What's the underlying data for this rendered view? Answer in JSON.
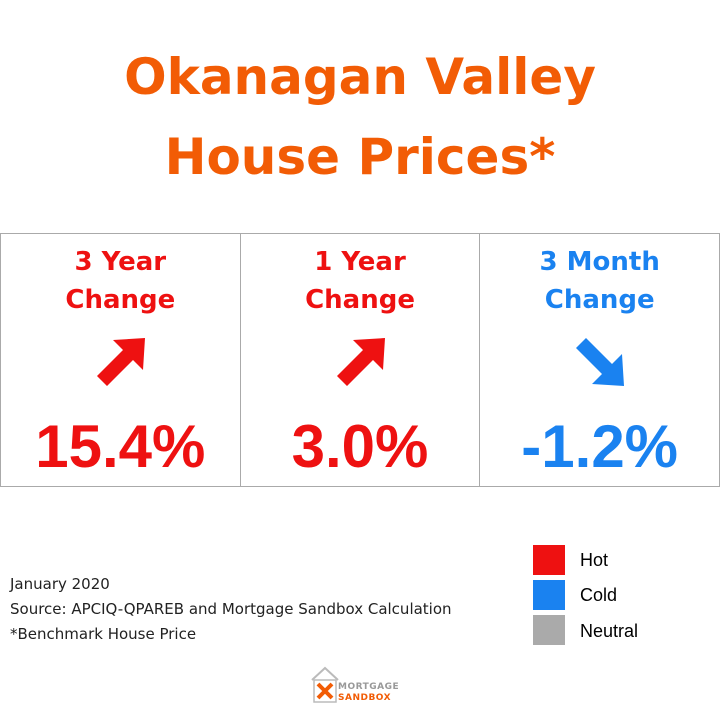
{
  "title": {
    "lines": [
      "Okanagan Valley",
      "House Prices*"
    ]
  },
  "cards": [
    {
      "label": [
        "3 Year",
        "Change"
      ],
      "value": "15.4%"
    },
    {
      "label": [
        "1 Year",
        "Change"
      ],
      "value": "3.0%"
    },
    {
      "label": [
        "3 Month",
        "Change"
      ],
      "value": "-1.2%"
    }
  ],
  "legend": [
    "Hot",
    "Cold",
    "Neutral"
  ],
  "notes": [
    "January 2020",
    "Source: APCIQ-QPAREB and Mortgage Sandbox Calculation",
    "*Benchmark House Price"
  ],
  "logo": [
    "MORTGAGE",
    "SANDBOX"
  ]
}
